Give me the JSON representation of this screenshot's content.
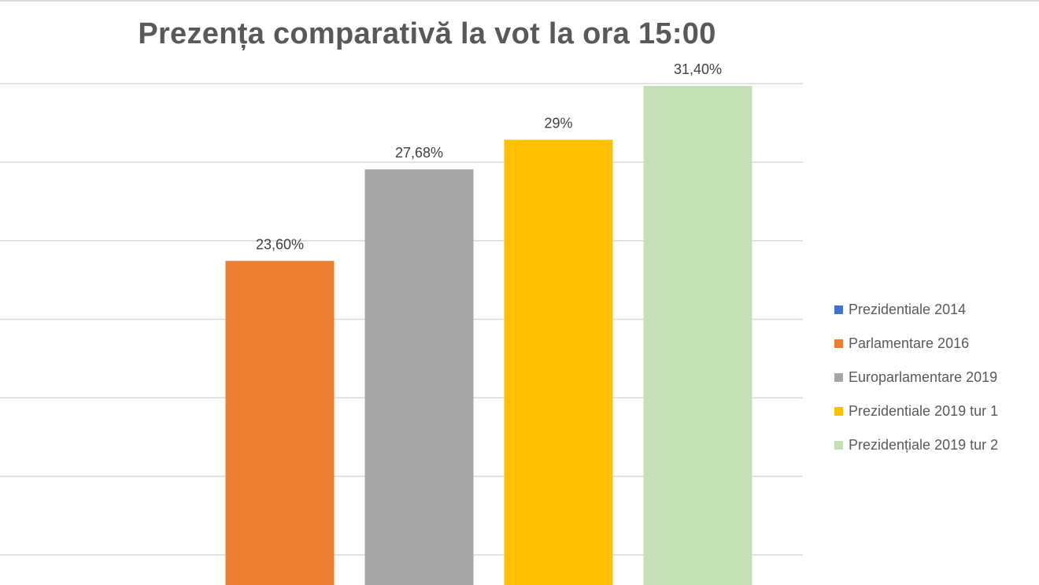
{
  "chart_data": {
    "type": "bar",
    "title": "Prezența comparativă la vot la ora 15:00",
    "xlabel": "",
    "ylabel": "",
    "ylim": [
      0,
      35
    ],
    "grid": true,
    "legend_position": "right",
    "series": [
      {
        "name": "Prezidentiale 2014",
        "value": null,
        "data_label": "",
        "color": "#4472c4"
      },
      {
        "name": "Parlamentare 2016",
        "value": 23.6,
        "data_label": "23,60%",
        "color": "#ed7d31"
      },
      {
        "name": "Europarlamentare 2019",
        "value": 27.68,
        "data_label": "27,68%",
        "color": "#a5a5a5"
      },
      {
        "name": "Prezidentiale 2019 tur 1",
        "value": 29,
        "data_label": "29%",
        "color": "#ffc000"
      },
      {
        "name": "Prezidențiale 2019 tur 2",
        "value": 31.4,
        "data_label": "31,40%",
        "color": "#c5e0b4"
      }
    ]
  }
}
